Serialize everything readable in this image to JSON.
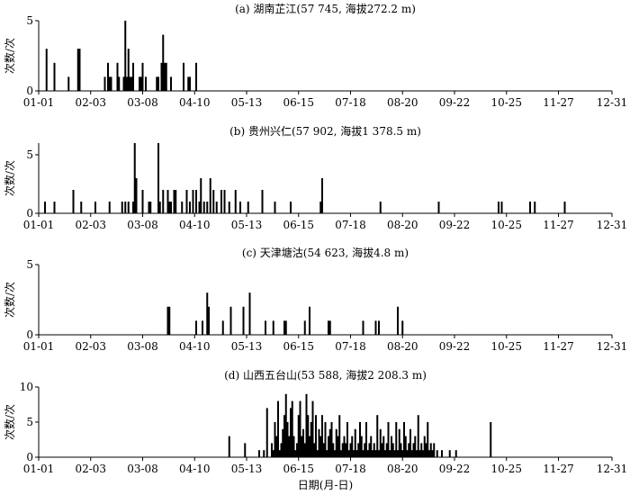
{
  "figure": {
    "xlabel": "日期(月-日)"
  },
  "chart_data": [
    {
      "type": "bar",
      "title": "(a) 湖南芷江(57 745, 海拔272.2 m)",
      "xlabel": "",
      "ylabel": "次数/次",
      "xlim": [
        1,
        365
      ],
      "ylim": [
        0,
        5
      ],
      "yticks": [
        0,
        5
      ],
      "xtick_labels": [
        "01-01",
        "02-03",
        "03-08",
        "04-10",
        "05-13",
        "06-15",
        "07-18",
        "08-20",
        "09-22",
        "10-25",
        "11-27",
        "12-31"
      ],
      "xtick_days": [
        1,
        34,
        67,
        100,
        133,
        166,
        199,
        232,
        265,
        298,
        331,
        365
      ],
      "days": [
        6,
        11,
        20,
        26,
        27,
        43,
        45,
        46,
        47,
        51,
        52,
        55,
        56,
        57,
        58,
        59,
        60,
        61,
        65,
        66,
        67,
        69,
        76,
        77,
        79,
        80,
        81,
        82,
        85,
        93,
        96,
        97,
        101
      ],
      "values": [
        3,
        2,
        1,
        3,
        3,
        1,
        2,
        1,
        1,
        2,
        1,
        1,
        5,
        1,
        3,
        1,
        1,
        2,
        1,
        1,
        2,
        1,
        1,
        1,
        2,
        4,
        2,
        2,
        1,
        2,
        1,
        1,
        2
      ]
    },
    {
      "type": "bar",
      "title": "(b) 贵州兴仁(57 902, 海拔1 378.5 m)",
      "xlabel": "",
      "ylabel": "次数/次",
      "xlim": [
        1,
        365
      ],
      "ylim": [
        0,
        6
      ],
      "yticks": [
        0,
        5
      ],
      "xtick_labels": [
        "01-01",
        "02-03",
        "03-08",
        "04-10",
        "05-13",
        "06-15",
        "07-18",
        "08-20",
        "09-22",
        "10-25",
        "11-27",
        "12-31"
      ],
      "xtick_days": [
        1,
        34,
        67,
        100,
        133,
        166,
        199,
        232,
        265,
        298,
        331,
        365
      ],
      "days": [
        5,
        11,
        23,
        28,
        37,
        46,
        54,
        56,
        58,
        61,
        62,
        63,
        67,
        71,
        72,
        77,
        78,
        80,
        83,
        84,
        85,
        87,
        88,
        92,
        95,
        97,
        99,
        101,
        103,
        104,
        106,
        108,
        110,
        112,
        114,
        117,
        119,
        122,
        126,
        129,
        134,
        143,
        151,
        161,
        180,
        181,
        218,
        255,
        293,
        295,
        313,
        316,
        335
      ],
      "values": [
        1,
        1,
        2,
        1,
        1,
        1,
        1,
        1,
        1,
        1,
        6,
        3,
        2,
        1,
        1,
        6,
        1,
        2,
        2,
        1,
        1,
        2,
        2,
        1,
        2,
        1,
        2,
        2,
        1,
        3,
        1,
        1,
        3,
        2,
        1,
        2,
        2,
        1,
        2,
        1,
        1,
        2,
        1,
        1,
        1,
        3,
        1,
        1,
        1,
        1,
        1,
        1,
        1
      ]
    },
    {
      "type": "bar",
      "title": "(c) 天津塘沽(54 623, 海拔4.8 m)",
      "xlabel": "",
      "ylabel": "次数/次",
      "xlim": [
        1,
        365
      ],
      "ylim": [
        0,
        5
      ],
      "yticks": [
        0,
        5
      ],
      "xtick_labels": [
        "01-01",
        "02-03",
        "03-08",
        "04-10",
        "05-13",
        "06-15",
        "07-18",
        "08-20",
        "09-22",
        "10-25",
        "11-27",
        "12-31"
      ],
      "xtick_days": [
        1,
        34,
        67,
        100,
        133,
        166,
        199,
        232,
        265,
        298,
        331,
        365
      ],
      "days": [
        83,
        84,
        101,
        105,
        108,
        109,
        118,
        123,
        131,
        135,
        145,
        150,
        157,
        158,
        170,
        173,
        185,
        186,
        207,
        215,
        217,
        229,
        232
      ],
      "values": [
        2,
        2,
        1,
        1,
        3,
        2,
        1,
        2,
        2,
        3,
        1,
        1,
        1,
        1,
        1,
        2,
        1,
        1,
        1,
        1,
        1,
        2,
        1
      ]
    },
    {
      "type": "bar",
      "title": "(d) 山西五台山(53 588, 海拔2 208.3 m)",
      "xlabel": "日期(月-日)",
      "ylabel": "次数/次",
      "xlim": [
        1,
        365
      ],
      "ylim": [
        0,
        10
      ],
      "yticks": [
        0,
        5,
        10
      ],
      "xtick_labels": [
        "01-01",
        "02-03",
        "03-08",
        "04-10",
        "05-13",
        "06-15",
        "07-18",
        "08-20",
        "09-22",
        "10-25",
        "11-27",
        "12-31"
      ],
      "xtick_days": [
        1,
        34,
        67,
        100,
        133,
        166,
        199,
        232,
        265,
        298,
        331,
        365
      ],
      "days": [
        122,
        132,
        141,
        144,
        146,
        149,
        150,
        151,
        152,
        153,
        154,
        155,
        156,
        157,
        158,
        159,
        160,
        161,
        162,
        163,
        164,
        165,
        166,
        167,
        168,
        169,
        170,
        171,
        172,
        173,
        174,
        175,
        176,
        177,
        178,
        179,
        180,
        181,
        182,
        183,
        184,
        185,
        186,
        187,
        188,
        189,
        190,
        191,
        192,
        193,
        194,
        195,
        196,
        197,
        198,
        199,
        200,
        201,
        202,
        203,
        204,
        205,
        206,
        207,
        208,
        209,
        210,
        211,
        212,
        213,
        214,
        215,
        216,
        217,
        218,
        219,
        220,
        221,
        222,
        223,
        224,
        225,
        226,
        227,
        228,
        229,
        230,
        231,
        232,
        233,
        234,
        235,
        236,
        237,
        238,
        239,
        240,
        241,
        242,
        243,
        244,
        245,
        246,
        247,
        248,
        249,
        250,
        251,
        252,
        254,
        257,
        262,
        266,
        288
      ],
      "values": [
        3,
        2,
        1,
        1,
        7,
        2,
        1,
        5,
        3,
        8,
        1,
        2,
        4,
        6,
        9,
        5,
        3,
        7,
        8,
        3,
        1,
        2,
        6,
        8,
        3,
        4,
        2,
        9,
        6,
        3,
        5,
        8,
        2,
        6,
        1,
        4,
        3,
        6,
        2,
        5,
        1,
        3,
        4,
        5,
        2,
        1,
        4,
        3,
        6,
        1,
        2,
        3,
        2,
        5,
        1,
        2,
        3,
        1,
        4,
        1,
        2,
        5,
        3,
        1,
        2,
        5,
        1,
        2,
        3,
        1,
        2,
        1,
        6,
        1,
        4,
        2,
        3,
        1,
        2,
        5,
        1,
        3,
        2,
        1,
        5,
        1,
        4,
        2,
        1,
        5,
        3,
        1,
        2,
        4,
        1,
        2,
        3,
        1,
        6,
        1,
        2,
        1,
        3,
        2,
        5,
        1,
        2,
        1,
        2,
        1,
        1,
        1,
        1,
        5
      ]
    }
  ]
}
